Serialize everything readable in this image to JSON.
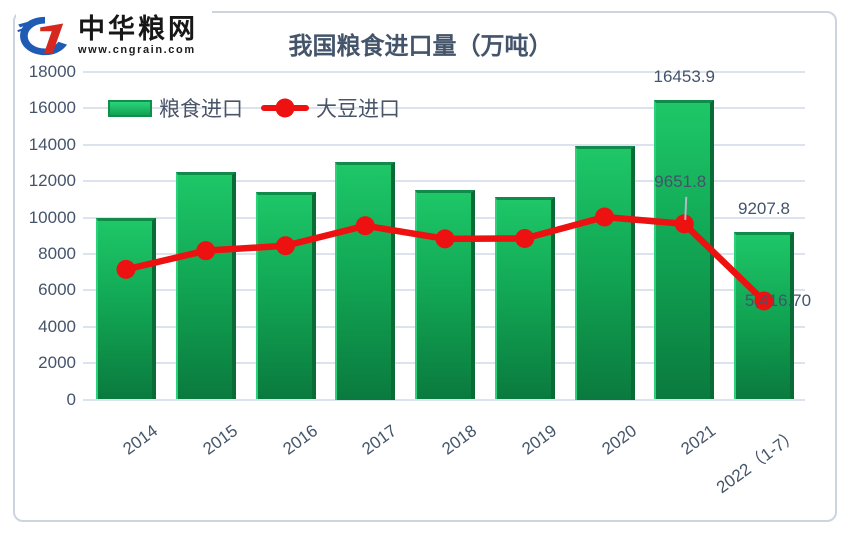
{
  "logo": {
    "name": "中华粮网",
    "url": "www.cngrain.com"
  },
  "title": "我国粮食进口量（万吨）",
  "legend": {
    "grain_label": "粮食进口",
    "soy_label": "大豆进口"
  },
  "colors": {
    "bar_green_top": "#1ec768",
    "bar_green_bottom": "#0a7a3e",
    "line_red": "#ed1111",
    "axis_text": "#44546a",
    "gridline": "#dde3ee"
  },
  "chart_data": {
    "type": "bar",
    "title": "我国粮食进口量（万吨）",
    "categories": [
      "2014",
      "2015",
      "2016",
      "2017",
      "2018",
      "2019",
      "2020",
      "2021",
      "2022（1-7）"
    ],
    "series": [
      {
        "name": "粮食进口",
        "type": "bar",
        "values": [
          10000,
          12480,
          11420,
          13050,
          11540,
          11150,
          13950,
          16453.9,
          9207.8
        ]
      },
      {
        "name": "大豆进口",
        "type": "line",
        "values": [
          7150,
          8180,
          8450,
          9550,
          8830,
          8850,
          10030,
          9651.8,
          5416.7
        ]
      }
    ],
    "ylim": [
      0,
      18000
    ],
    "ytick_step": 2000,
    "y_ticks": [
      "0",
      "2000",
      "4000",
      "6000",
      "8000",
      "10000",
      "12000",
      "14000",
      "16000",
      "18000"
    ],
    "grid": true,
    "legend_position": "top-left",
    "data_labels": [
      {
        "series": "粮食进口",
        "index": 7,
        "text": "16453.9",
        "position": "above-bar"
      },
      {
        "series": "粮食进口",
        "index": 8,
        "text": "9207.8",
        "position": "above-bar"
      },
      {
        "series": "大豆进口",
        "index": 7,
        "text": "9651.8",
        "position": "above-point-leader"
      },
      {
        "series": "大豆进口",
        "index": 8,
        "text": "5,416.70",
        "position": "on-point"
      }
    ]
  }
}
